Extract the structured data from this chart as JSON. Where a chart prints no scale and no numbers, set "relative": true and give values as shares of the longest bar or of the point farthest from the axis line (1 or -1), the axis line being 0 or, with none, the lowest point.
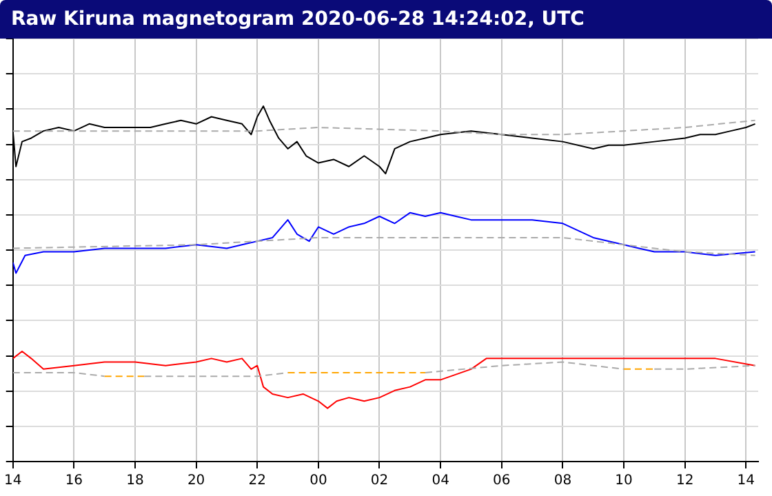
{
  "chart_data": {
    "type": "line",
    "title": "Raw Kiruna magnetogram 2020-06-28 14:24:02, UTC",
    "relative": true,
    "grid": true,
    "legend": false,
    "marker": "none",
    "line_style": "solid",
    "xlim": [
      "2020-06-27T14:00",
      "2020-06-28T14:24"
    ],
    "xticks": [
      {
        "value": "2020-06-27T14:00",
        "label": "14"
      },
      {
        "value": "2020-06-27T16:00",
        "label": "16"
      },
      {
        "value": "2020-06-27T18:00",
        "label": "18"
      },
      {
        "value": "2020-06-27T20:00",
        "label": "20"
      },
      {
        "value": "2020-06-27T22:00",
        "label": "22"
      },
      {
        "value": "2020-06-28T00:00",
        "label": "00"
      },
      {
        "value": "2020-06-28T02:00",
        "label": "02"
      },
      {
        "value": "2020-06-28T04:00",
        "label": "04"
      },
      {
        "value": "2020-06-28T06:00",
        "label": "06"
      },
      {
        "value": "2020-06-28T08:00",
        "label": "08"
      },
      {
        "value": "2020-06-28T10:00",
        "label": "10"
      },
      {
        "value": "2020-06-28T12:00",
        "label": "12"
      },
      {
        "value": "2020-06-28T14:00",
        "label": "14"
      }
    ],
    "series": [
      {
        "color": "#aaaaaa",
        "line_style": "dashed",
        "x": [
          "2020-06-27T14:00",
          "2020-06-27T22:00",
          "2020-06-28T00:00",
          "2020-06-28T04:00",
          "2020-06-28T06:00",
          "2020-06-28T08:00",
          "2020-06-28T10:00",
          "2020-06-28T12:00",
          "2020-06-28T14:18"
        ],
        "values": [
          0.93,
          0.93,
          0.94,
          0.93,
          0.92,
          0.92,
          0.93,
          0.94,
          0.96
        ]
      },
      {
        "color": "#000000",
        "x": [
          "2020-06-27T14:00",
          "2020-06-27T14:06",
          "2020-06-27T14:18",
          "2020-06-27T14:36",
          "2020-06-27T15:00",
          "2020-06-27T15:30",
          "2020-06-27T16:00",
          "2020-06-27T16:30",
          "2020-06-27T17:00",
          "2020-06-27T18:00",
          "2020-06-27T18:30",
          "2020-06-27T19:00",
          "2020-06-27T19:30",
          "2020-06-27T20:00",
          "2020-06-27T20:30",
          "2020-06-27T21:00",
          "2020-06-27T21:30",
          "2020-06-27T21:48",
          "2020-06-27T22:00",
          "2020-06-27T22:12",
          "2020-06-27T22:24",
          "2020-06-27T22:42",
          "2020-06-27T23:00",
          "2020-06-27T23:18",
          "2020-06-27T23:36",
          "2020-06-28T00:00",
          "2020-06-28T00:30",
          "2020-06-28T01:00",
          "2020-06-28T01:30",
          "2020-06-28T02:00",
          "2020-06-28T02:12",
          "2020-06-28T02:30",
          "2020-06-28T03:00",
          "2020-06-28T03:30",
          "2020-06-28T04:00",
          "2020-06-28T05:00",
          "2020-06-28T06:00",
          "2020-06-28T07:00",
          "2020-06-28T08:00",
          "2020-06-28T09:00",
          "2020-06-28T09:30",
          "2020-06-28T10:00",
          "2020-06-28T11:00",
          "2020-06-28T12:00",
          "2020-06-28T12:30",
          "2020-06-28T13:00",
          "2020-06-28T13:30",
          "2020-06-28T14:00",
          "2020-06-28T14:18"
        ],
        "values": [
          0.93,
          0.83,
          0.9,
          0.91,
          0.93,
          0.94,
          0.93,
          0.95,
          0.94,
          0.94,
          0.94,
          0.95,
          0.96,
          0.95,
          0.97,
          0.96,
          0.95,
          0.92,
          0.97,
          1,
          0.96,
          0.91,
          0.88,
          0.9,
          0.86,
          0.84,
          0.85,
          0.83,
          0.86,
          0.83,
          0.81,
          0.88,
          0.9,
          0.91,
          0.92,
          0.93,
          0.92,
          0.91,
          0.9,
          0.88,
          0.89,
          0.89,
          0.9,
          0.91,
          0.92,
          0.92,
          0.93,
          0.94,
          0.95
        ]
      },
      {
        "color": "#aaaaaa",
        "line_style": "dashed",
        "x": [
          "2020-06-27T14:00",
          "2020-06-27T20:00",
          "2020-06-28T00:00",
          "2020-06-28T04:00",
          "2020-06-28T08:00",
          "2020-06-28T12:00",
          "2020-06-28T14:18"
        ],
        "values": [
          0.6,
          0.61,
          0.63,
          0.63,
          0.63,
          0.59,
          0.58
        ]
      },
      {
        "color": "#0000ff",
        "x": [
          "2020-06-27T14:00",
          "2020-06-27T14:06",
          "2020-06-27T14:24",
          "2020-06-27T15:00",
          "2020-06-27T16:00",
          "2020-06-27T17:00",
          "2020-06-27T18:00",
          "2020-06-27T19:00",
          "2020-06-27T20:00",
          "2020-06-27T21:00",
          "2020-06-27T21:30",
          "2020-06-27T22:00",
          "2020-06-27T22:30",
          "2020-06-27T23:00",
          "2020-06-27T23:18",
          "2020-06-27T23:42",
          "2020-06-28T00:00",
          "2020-06-28T00:30",
          "2020-06-28T01:00",
          "2020-06-28T01:30",
          "2020-06-28T02:00",
          "2020-06-28T02:30",
          "2020-06-28T03:00",
          "2020-06-28T03:30",
          "2020-06-28T04:00",
          "2020-06-28T04:30",
          "2020-06-28T05:00",
          "2020-06-28T06:00",
          "2020-06-28T07:00",
          "2020-06-28T08:00",
          "2020-06-28T08:30",
          "2020-06-28T09:00",
          "2020-06-28T10:00",
          "2020-06-28T10:30",
          "2020-06-28T11:00",
          "2020-06-28T12:00",
          "2020-06-28T13:00",
          "2020-06-28T14:18"
        ],
        "values": [
          0.56,
          0.53,
          0.58,
          0.59,
          0.59,
          0.6,
          0.6,
          0.6,
          0.61,
          0.6,
          0.61,
          0.62,
          0.63,
          0.68,
          0.64,
          0.62,
          0.66,
          0.64,
          0.66,
          0.67,
          0.69,
          0.67,
          0.7,
          0.69,
          0.7,
          0.69,
          0.68,
          0.68,
          0.68,
          0.67,
          0.65,
          0.63,
          0.61,
          0.6,
          0.59,
          0.59,
          0.58,
          0.59
        ]
      },
      {
        "color": "#aaaaaa",
        "line_style": "dashed",
        "x": [
          "2020-06-27T14:00",
          "2020-06-27T16:00",
          "2020-06-27T17:00",
          "2020-06-27T17:30",
          "2020-06-27T18:18",
          "2020-06-27T20:00",
          "2020-06-27T22:00",
          "2020-06-27T23:00",
          "2020-06-28T01:00",
          "2020-06-28T03:30",
          "2020-06-28T06:00",
          "2020-06-28T08:00",
          "2020-06-28T10:00",
          "2020-06-28T10:30",
          "2020-06-28T11:00",
          "2020-06-28T12:00",
          "2020-06-28T14:18"
        ],
        "values": [
          0.25,
          0.25,
          0.24,
          null,
          0.24,
          0.24,
          0.24,
          0.25,
          null,
          0.25,
          0.27,
          0.28,
          0.26,
          null,
          0.26,
          0.26,
          0.27
        ]
      },
      {
        "color": "#ffa500",
        "line_style": "dashed",
        "x": [
          "2020-06-27T17:00",
          "2020-06-27T18:18",
          "2020-06-27T20:00",
          "2020-06-27T23:00",
          "2020-06-28T01:00",
          "2020-06-28T03:30",
          "2020-06-28T06:00",
          "2020-06-28T10:00",
          "2020-06-28T11:00"
        ],
        "values": [
          0.24,
          0.24,
          null,
          0.25,
          0.25,
          0.25,
          null,
          0.26,
          0.26
        ]
      },
      {
        "color": "#ff0000",
        "x": [
          "2020-06-27T14:00",
          "2020-06-27T14:18",
          "2020-06-27T14:36",
          "2020-06-27T15:00",
          "2020-06-27T16:00",
          "2020-06-27T17:00",
          "2020-06-27T18:00",
          "2020-06-27T19:00",
          "2020-06-27T20:00",
          "2020-06-27T20:30",
          "2020-06-27T21:00",
          "2020-06-27T21:30",
          "2020-06-27T21:48",
          "2020-06-27T22:00",
          "2020-06-27T22:12",
          "2020-06-27T22:30",
          "2020-06-27T23:00",
          "2020-06-27T23:30",
          "2020-06-28T00:00",
          "2020-06-28T00:18",
          "2020-06-28T00:36",
          "2020-06-28T01:00",
          "2020-06-28T01:30",
          "2020-06-28T02:00",
          "2020-06-28T02:30",
          "2020-06-28T03:00",
          "2020-06-28T03:30",
          "2020-06-28T04:00",
          "2020-06-28T05:00",
          "2020-06-28T05:30",
          "2020-06-28T06:00",
          "2020-06-28T07:00",
          "2020-06-28T08:00",
          "2020-06-28T09:00",
          "2020-06-28T10:00",
          "2020-06-28T11:00",
          "2020-06-28T12:00",
          "2020-06-28T13:00",
          "2020-06-28T14:18"
        ],
        "values": [
          0.29,
          0.31,
          0.29,
          0.26,
          0.27,
          0.28,
          0.28,
          0.27,
          0.28,
          0.29,
          0.28,
          0.29,
          0.26,
          0.27,
          0.21,
          0.19,
          0.18,
          0.19,
          0.17,
          0.15,
          0.17,
          0.18,
          0.17,
          0.18,
          0.2,
          0.21,
          0.23,
          0.23,
          0.26,
          0.29,
          0.29,
          0.29,
          0.29,
          0.29,
          0.29,
          0.29,
          0.29,
          0.29,
          0.27
        ]
      }
    ]
  }
}
